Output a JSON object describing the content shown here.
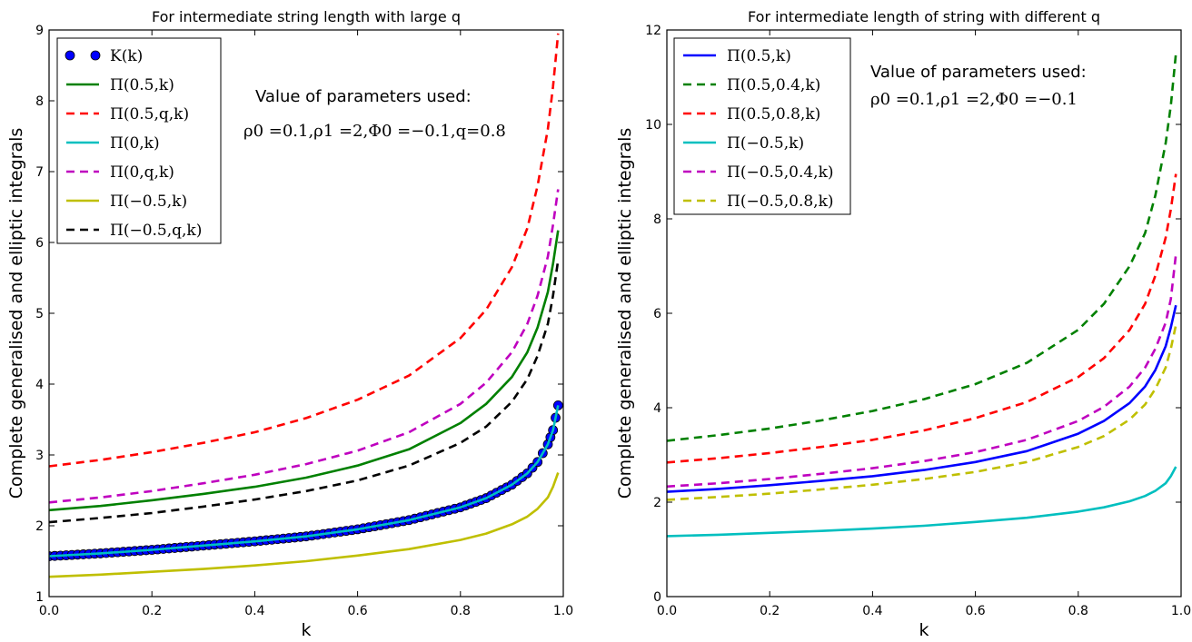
{
  "chart_data": [
    {
      "type": "line",
      "title": "For intermediate string length with large q",
      "xlabel": "k",
      "ylabel": "Complete generalised and elliptic integrals",
      "xlim": [
        0.0,
        1.0
      ],
      "ylim": [
        1,
        9
      ],
      "x_ticks": [
        "0.0",
        "0.2",
        "0.4",
        "0.6",
        "0.8",
        "1.0"
      ],
      "y_ticks": [
        "1",
        "2",
        "3",
        "4",
        "5",
        "6",
        "7",
        "8",
        "9"
      ],
      "grid": false,
      "legend_placement": "top-left",
      "annotation": {
        "line1": "Value of parameters used:",
        "line2": "ρ0 =0.1,ρ1 =2,Φ0 =−0.1,q=0.8"
      },
      "series": [
        {
          "name": "K(k)",
          "color": "#0000ff",
          "style": "markers",
          "x": [
            0.0,
            0.1,
            0.2,
            0.3,
            0.4,
            0.5,
            0.6,
            0.7,
            0.8,
            0.85,
            0.9,
            0.93,
            0.95,
            0.97,
            0.98,
            0.99
          ],
          "y": [
            1.57,
            1.61,
            1.66,
            1.72,
            1.78,
            1.85,
            1.95,
            2.08,
            2.26,
            2.39,
            2.58,
            2.74,
            2.9,
            3.15,
            3.35,
            3.7
          ]
        },
        {
          "name": "Π(0.5,k)",
          "color": "#008000",
          "style": "solid",
          "x": [
            0.0,
            0.1,
            0.2,
            0.3,
            0.4,
            0.5,
            0.6,
            0.7,
            0.8,
            0.85,
            0.9,
            0.93,
            0.95,
            0.97,
            0.98,
            0.99
          ],
          "y": [
            2.22,
            2.28,
            2.36,
            2.45,
            2.55,
            2.68,
            2.85,
            3.08,
            3.45,
            3.72,
            4.1,
            4.45,
            4.8,
            5.3,
            5.7,
            6.17
          ]
        },
        {
          "name": "Π(0.5,q,k)",
          "color": "#ff0000",
          "style": "dashed",
          "x": [
            0.0,
            0.1,
            0.2,
            0.3,
            0.4,
            0.5,
            0.6,
            0.7,
            0.8,
            0.85,
            0.9,
            0.93,
            0.95,
            0.97,
            0.98,
            0.99
          ],
          "y": [
            2.84,
            2.93,
            3.04,
            3.17,
            3.32,
            3.52,
            3.78,
            4.12,
            4.65,
            5.05,
            5.65,
            6.2,
            6.8,
            7.6,
            8.2,
            8.95
          ]
        },
        {
          "name": "Π(0,k)",
          "color": "#00bfbf",
          "style": "solid",
          "x": [
            0.0,
            0.1,
            0.2,
            0.3,
            0.4,
            0.5,
            0.6,
            0.7,
            0.8,
            0.85,
            0.9,
            0.93,
            0.95,
            0.97,
            0.98,
            0.99
          ],
          "y": [
            1.57,
            1.61,
            1.66,
            1.72,
            1.78,
            1.85,
            1.95,
            2.08,
            2.26,
            2.39,
            2.58,
            2.74,
            2.9,
            3.15,
            3.35,
            3.7
          ]
        },
        {
          "name": "Π(0,q,k)",
          "color": "#bf00bf",
          "style": "dashed",
          "x": [
            0.0,
            0.1,
            0.2,
            0.3,
            0.4,
            0.5,
            0.6,
            0.7,
            0.8,
            0.85,
            0.9,
            0.93,
            0.95,
            0.97,
            0.98,
            0.99
          ],
          "y": [
            2.33,
            2.4,
            2.49,
            2.6,
            2.72,
            2.87,
            3.06,
            3.32,
            3.72,
            4.02,
            4.45,
            4.85,
            5.25,
            5.8,
            6.25,
            6.75
          ]
        },
        {
          "name": "Π(−0.5,k)",
          "color": "#bfbf00",
          "style": "solid",
          "x": [
            0.0,
            0.1,
            0.2,
            0.3,
            0.4,
            0.5,
            0.6,
            0.7,
            0.8,
            0.85,
            0.9,
            0.93,
            0.95,
            0.97,
            0.98,
            0.99
          ],
          "y": [
            1.28,
            1.31,
            1.35,
            1.39,
            1.44,
            1.5,
            1.58,
            1.67,
            1.8,
            1.89,
            2.02,
            2.13,
            2.24,
            2.4,
            2.55,
            2.75
          ]
        },
        {
          "name": "Π(−0.5,q,k)",
          "color": "#000000",
          "style": "dashed",
          "x": [
            0.0,
            0.1,
            0.2,
            0.3,
            0.4,
            0.5,
            0.6,
            0.7,
            0.8,
            0.85,
            0.9,
            0.93,
            0.95,
            0.97,
            0.98,
            0.99
          ],
          "y": [
            2.05,
            2.11,
            2.18,
            2.27,
            2.37,
            2.49,
            2.64,
            2.85,
            3.17,
            3.4,
            3.75,
            4.07,
            4.4,
            4.85,
            5.25,
            5.75
          ]
        }
      ]
    },
    {
      "type": "line",
      "title": "For intermediate length of string with different q",
      "xlabel": "k",
      "ylabel": "Complete generalised and elliptic integrals",
      "xlim": [
        0.0,
        1.0
      ],
      "ylim": [
        0,
        12
      ],
      "x_ticks": [
        "0.0",
        "0.2",
        "0.4",
        "0.6",
        "0.8",
        "1.0"
      ],
      "y_ticks": [
        "0",
        "2",
        "4",
        "6",
        "8",
        "10",
        "12"
      ],
      "grid": false,
      "legend_placement": "top-left",
      "annotation": {
        "line1": "Value of parameters used:",
        "line2": "ρ0 =0.1,ρ1 =2,Φ0 =−0.1"
      },
      "series": [
        {
          "name": "Π(0.5,k)",
          "color": "#0000ff",
          "style": "solid",
          "x": [
            0.0,
            0.1,
            0.2,
            0.3,
            0.4,
            0.5,
            0.6,
            0.7,
            0.8,
            0.85,
            0.9,
            0.93,
            0.95,
            0.97,
            0.98,
            0.99
          ],
          "y": [
            2.22,
            2.28,
            2.36,
            2.45,
            2.55,
            2.68,
            2.85,
            3.08,
            3.45,
            3.72,
            4.1,
            4.45,
            4.8,
            5.3,
            5.7,
            6.17
          ]
        },
        {
          "name": "Π(0.5,0.4,k)",
          "color": "#008000",
          "style": "dashed",
          "x": [
            0.0,
            0.1,
            0.2,
            0.3,
            0.4,
            0.5,
            0.6,
            0.7,
            0.8,
            0.85,
            0.9,
            0.93,
            0.95,
            0.97,
            0.98,
            0.99
          ],
          "y": [
            3.3,
            3.42,
            3.56,
            3.73,
            3.93,
            4.18,
            4.5,
            4.95,
            5.65,
            6.2,
            7.0,
            7.7,
            8.5,
            9.6,
            10.4,
            11.5
          ]
        },
        {
          "name": "Π(0.5,0.8,k)",
          "color": "#ff0000",
          "style": "dashed",
          "x": [
            0.0,
            0.1,
            0.2,
            0.3,
            0.4,
            0.5,
            0.6,
            0.7,
            0.8,
            0.85,
            0.9,
            0.93,
            0.95,
            0.97,
            0.98,
            0.99
          ],
          "y": [
            2.84,
            2.93,
            3.04,
            3.17,
            3.32,
            3.52,
            3.78,
            4.12,
            4.65,
            5.05,
            5.65,
            6.2,
            6.8,
            7.6,
            8.2,
            8.95
          ]
        },
        {
          "name": "Π(−0.5,k)",
          "color": "#00bfbf",
          "style": "solid",
          "x": [
            0.0,
            0.1,
            0.2,
            0.3,
            0.4,
            0.5,
            0.6,
            0.7,
            0.8,
            0.85,
            0.9,
            0.93,
            0.95,
            0.97,
            0.98,
            0.99
          ],
          "y": [
            1.28,
            1.31,
            1.35,
            1.39,
            1.44,
            1.5,
            1.58,
            1.67,
            1.8,
            1.89,
            2.02,
            2.13,
            2.24,
            2.4,
            2.55,
            2.75
          ]
        },
        {
          "name": "Π(−0.5,0.4,k)",
          "color": "#bf00bf",
          "style": "dashed",
          "x": [
            0.0,
            0.1,
            0.2,
            0.3,
            0.4,
            0.5,
            0.6,
            0.7,
            0.8,
            0.85,
            0.9,
            0.93,
            0.95,
            0.97,
            0.98,
            0.99
          ],
          "y": [
            2.33,
            2.4,
            2.49,
            2.6,
            2.72,
            2.87,
            3.06,
            3.32,
            3.72,
            4.02,
            4.45,
            4.85,
            5.25,
            5.8,
            6.3,
            7.25
          ]
        },
        {
          "name": "Π(−0.5,0.8,k)",
          "color": "#bfbf00",
          "style": "dashed",
          "x": [
            0.0,
            0.1,
            0.2,
            0.3,
            0.4,
            0.5,
            0.6,
            0.7,
            0.8,
            0.85,
            0.9,
            0.93,
            0.95,
            0.97,
            0.98,
            0.99
          ],
          "y": [
            2.05,
            2.11,
            2.18,
            2.27,
            2.37,
            2.49,
            2.64,
            2.85,
            3.17,
            3.4,
            3.75,
            4.07,
            4.4,
            4.85,
            5.25,
            5.75
          ]
        }
      ]
    }
  ]
}
